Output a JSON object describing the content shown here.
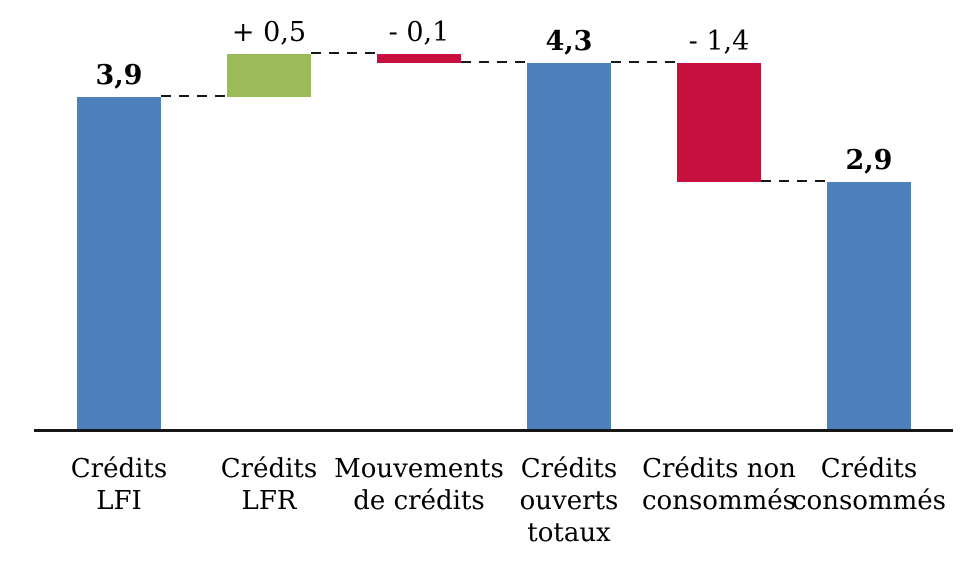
{
  "chart_data": {
    "type": "bar",
    "subtype": "waterfall",
    "title": "",
    "xlabel": "",
    "ylabel": "",
    "grid": false,
    "legend": false,
    "ylim": [
      0,
      4.4
    ],
    "categories": [
      "Crédits LFI",
      "Crédits LFR",
      "Mouvements de crédits",
      "Crédits ouverts totaux",
      "Crédits non consommés",
      "Crédits consommés"
    ],
    "category_lines": [
      [
        "Crédits",
        "LFI"
      ],
      [
        "Crédits",
        "LFR"
      ],
      [
        "Mouvements",
        "de crédits"
      ],
      [
        "Crédits",
        "ouverts",
        "totaux"
      ],
      [
        "Crédits non",
        "consommés"
      ],
      [
        "Crédits",
        "consommés"
      ]
    ],
    "values": [
      3.9,
      0.5,
      -0.1,
      4.3,
      -1.4,
      2.9
    ],
    "roles": [
      "total",
      "delta",
      "delta",
      "total",
      "delta",
      "total"
    ],
    "value_labels": [
      "3,9",
      "+ 0,5",
      "- 0,1",
      "4,3",
      "- 1,4",
      "2,9"
    ],
    "value_label_bold": [
      true,
      false,
      false,
      true,
      false,
      true
    ],
    "bar_colors": [
      "#4E80BD",
      "#9BBB59",
      "#C8103E",
      "#4E80BD",
      "#C8103E",
      "#4E80BD"
    ],
    "colors": {
      "total_blue": "#4E80BD",
      "increase_green": "#9BBB59",
      "decrease_red": "#C8103E",
      "axis": "#161616",
      "connector": "#161616",
      "text": "#000000"
    },
    "connector_style": "dashed"
  }
}
